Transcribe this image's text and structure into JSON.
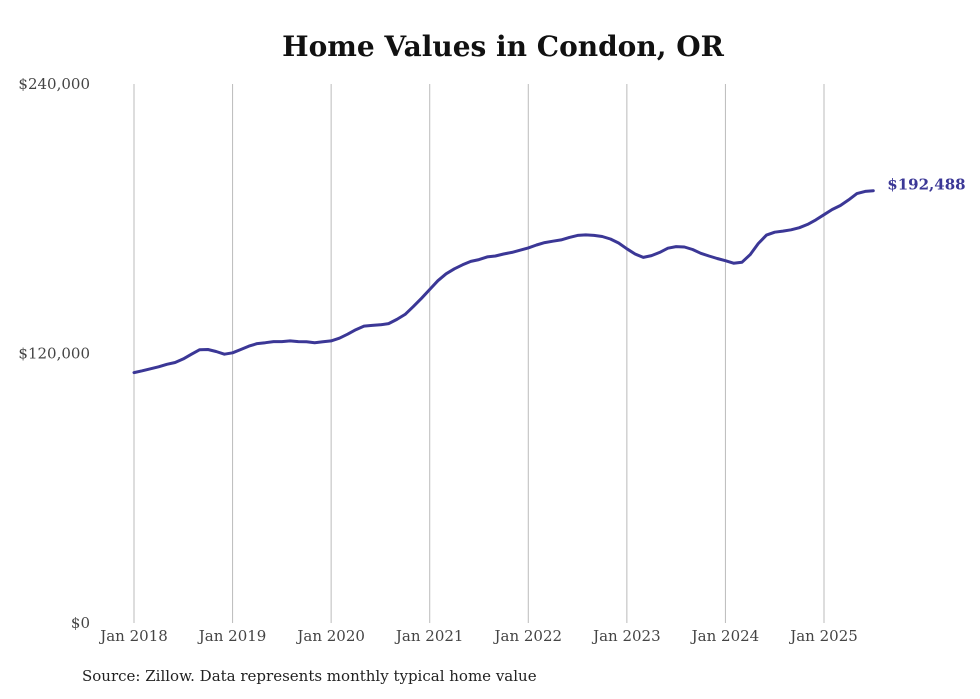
{
  "chart_data": {
    "type": "line",
    "title": "Home Values in Condon, OR",
    "source": "Source: Zillow. Data represents monthly typical home value",
    "ylim": [
      0,
      240000
    ],
    "y_ticks": [
      "$0",
      "$120,000",
      "$240,000"
    ],
    "y_tick_values": [
      0,
      120000,
      240000
    ],
    "x_tick_labels": [
      "Jan 2018",
      "Jan 2019",
      "Jan 2020",
      "Jan 2021",
      "Jan 2022",
      "Jan 2023",
      "Jan 2024",
      "Jan 2025"
    ],
    "x_tick_dates": [
      "2018-01",
      "2019-01",
      "2020-01",
      "2021-01",
      "2022-01",
      "2023-01",
      "2024-01",
      "2025-01"
    ],
    "end_label": "$192,488",
    "grid": "vertical",
    "colors": {
      "line": "#3b3796",
      "grid": "#bbbbbb"
    },
    "series": [
      {
        "x": [
          "2018-01",
          "2018-02",
          "2018-03",
          "2018-04",
          "2018-05",
          "2018-06",
          "2018-07",
          "2018-08",
          "2018-09",
          "2018-10",
          "2018-11",
          "2018-12",
          "2019-01",
          "2019-02",
          "2019-03",
          "2019-04",
          "2019-05",
          "2019-06",
          "2019-07",
          "2019-08",
          "2019-09",
          "2019-10",
          "2019-11",
          "2019-12",
          "2020-01",
          "2020-02",
          "2020-03",
          "2020-04",
          "2020-05",
          "2020-06",
          "2020-07",
          "2020-08",
          "2020-09",
          "2020-10",
          "2020-11",
          "2020-12",
          "2021-01",
          "2021-02",
          "2021-03",
          "2021-04",
          "2021-05",
          "2021-06",
          "2021-07",
          "2021-08",
          "2021-09",
          "2021-10",
          "2021-11",
          "2021-12",
          "2022-01",
          "2022-02",
          "2022-03",
          "2022-04",
          "2022-05",
          "2022-06",
          "2022-07",
          "2022-08",
          "2022-09",
          "2022-10",
          "2022-11",
          "2022-12",
          "2023-01",
          "2023-02",
          "2023-03",
          "2023-04",
          "2023-05",
          "2023-06",
          "2023-07",
          "2023-08",
          "2023-09",
          "2023-10",
          "2023-11",
          "2023-12",
          "2024-01",
          "2024-02",
          "2024-03",
          "2024-04",
          "2024-05",
          "2024-06",
          "2024-07",
          "2024-08",
          "2024-09",
          "2024-10",
          "2024-11",
          "2024-12",
          "2025-01",
          "2025-02",
          "2025-03",
          "2025-04",
          "2025-05",
          "2025-06",
          "2025-07"
        ],
        "values": [
          111500,
          112300,
          113200,
          114100,
          115200,
          116000,
          117600,
          119700,
          121700,
          121800,
          120900,
          119700,
          120300,
          121800,
          123300,
          124400,
          124800,
          125300,
          125300,
          125600,
          125300,
          125200,
          124800,
          125200,
          125600,
          126800,
          128600,
          130600,
          132200,
          132500,
          132800,
          133300,
          135200,
          137400,
          140900,
          144600,
          148500,
          152400,
          155500,
          157700,
          159500,
          161000,
          161800,
          163000,
          163400,
          164300,
          165000,
          166000,
          167000,
          168300,
          169400,
          170000,
          170600,
          171700,
          172600,
          172800,
          172600,
          172100,
          171000,
          169200,
          166600,
          164300,
          162800,
          163600,
          165000,
          166900,
          167600,
          167400,
          166300,
          164600,
          163400,
          162300,
          161300,
          160200,
          160600,
          164000,
          169000,
          172700,
          174000,
          174500,
          175100,
          176000,
          177500,
          179500,
          181800,
          184100,
          185900,
          188400,
          191200,
          192200,
          192488
        ]
      }
    ]
  }
}
